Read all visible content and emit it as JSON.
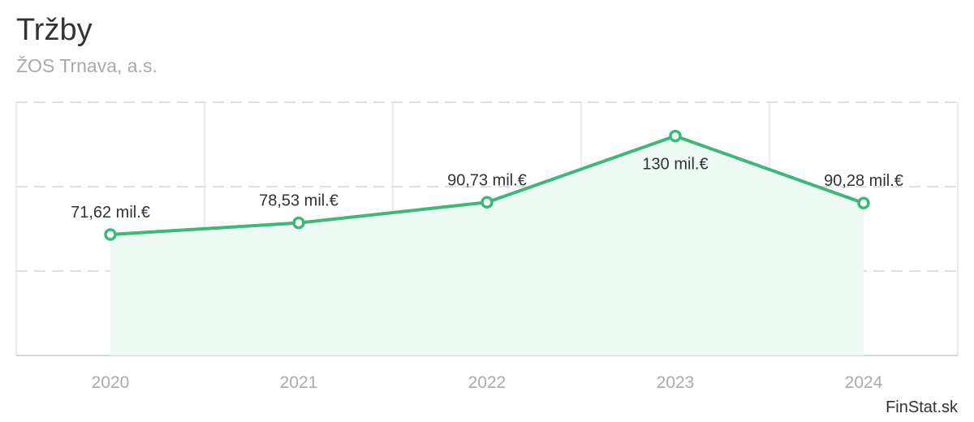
{
  "chart_data": {
    "type": "area",
    "title": "Tržby",
    "subtitle": "ŽOS Trnava, a.s.",
    "categories": [
      "2020",
      "2021",
      "2022",
      "2023",
      "2024"
    ],
    "series": [
      {
        "name": "Tržby",
        "values": [
          71.62,
          78.53,
          90.73,
          130,
          90.28
        ],
        "labels": [
          "71,62 mil.€",
          "78,53 mil.€",
          "90,73 mil.€",
          "130 mil.€",
          "90,28 mil.€"
        ]
      }
    ],
    "ylim": [
      0,
      150
    ],
    "grid": true,
    "xlabel": "",
    "ylabel": "",
    "line_color": "#3cb878",
    "fill_color": "#eef9f3"
  },
  "branding": {
    "watermark": "FinStat.sk"
  }
}
